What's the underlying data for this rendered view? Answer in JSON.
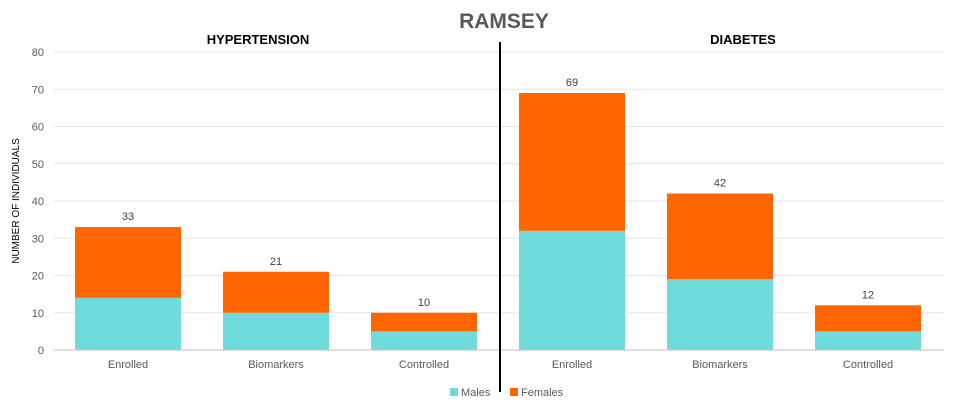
{
  "chart_data": {
    "type": "bar",
    "stacked": true,
    "title": "RAMSEY",
    "ylabel": "NUMBER OF INDIVIDUALS",
    "ylim": [
      0,
      80
    ],
    "yticks": [
      0,
      10,
      20,
      30,
      40,
      50,
      60,
      70,
      80
    ],
    "grid": true,
    "legend_position": "bottom",
    "groups": [
      "HYPERTENSION",
      "DIABETES"
    ],
    "categories": [
      "Enrolled",
      "Biomarkers",
      "Controlled",
      "Enrolled",
      "Biomarkers",
      "Controlled"
    ],
    "series": [
      {
        "name": "Males",
        "color": "#70dbdb",
        "values": [
          14,
          10,
          5,
          32,
          19,
          5
        ]
      },
      {
        "name": "Females",
        "color": "#ff6600",
        "values": [
          19,
          11,
          5,
          37,
          23,
          7
        ]
      }
    ],
    "totals": [
      33,
      21,
      10,
      69,
      42,
      12
    ]
  }
}
